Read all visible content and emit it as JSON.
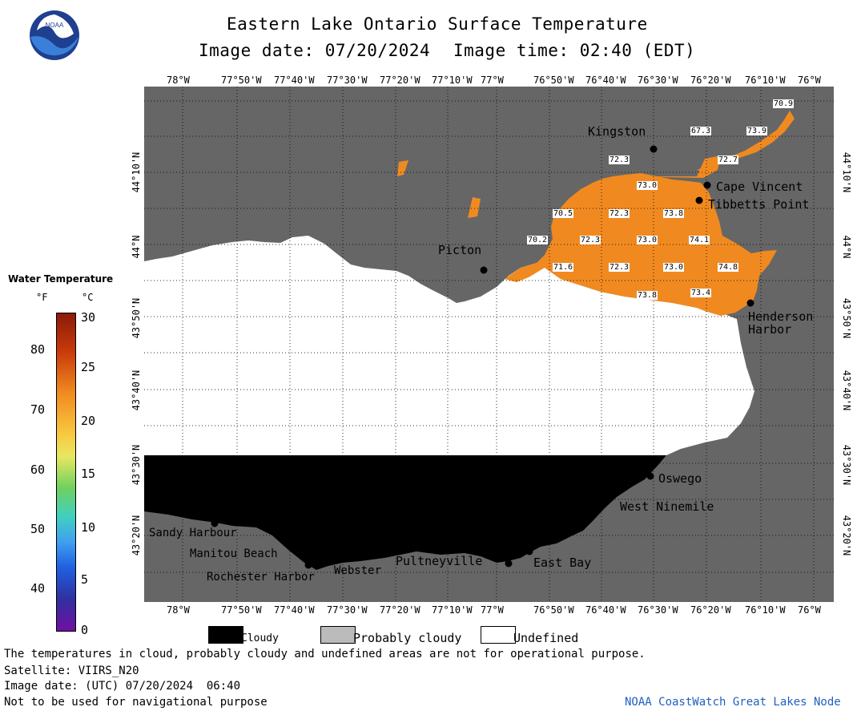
{
  "header": {
    "title": "Eastern Lake Ontario Surface Temperature",
    "date_label": "Image date: 07/20/2024",
    "time_label": "Image time: 02:40 (EDT)"
  },
  "axes": {
    "lon_labels": [
      "78°W",
      "77°50'W",
      "77°40'W",
      "77°30'W",
      "77°20'W",
      "77°10'W",
      "77°W",
      "76°50'W",
      "76°40'W",
      "76°30'W",
      "76°20'W",
      "76°10'W",
      "76°W"
    ],
    "lat_labels": [
      "44°10'N",
      "44°N",
      "43°50'N",
      "43°40'N",
      "43°30'N",
      "43°20'N"
    ]
  },
  "colorbar": {
    "title": "Water Temperature",
    "unit_f": "°F",
    "unit_c": "°C",
    "f_ticks": [
      "80",
      "70",
      "60",
      "50",
      "40"
    ],
    "c_ticks": [
      "30",
      "25",
      "20",
      "15",
      "10",
      "5",
      "0"
    ]
  },
  "places": {
    "kingston": "Kingston",
    "cape_vincent": "Cape Vincent",
    "tibbetts": "Tibbetts Point",
    "picton": "Picton",
    "henderson": "Henderson\nHarbor",
    "oswego": "Oswego",
    "west_ninemile": "West Ninemile",
    "sandy_harbour": "Sandy Harbour",
    "manitou": "Manitou Beach",
    "rochester": "Rochester Harbor",
    "webster": "Webster",
    "pultneyville": "Pultneyville",
    "east_bay": "East Bay"
  },
  "temp_labels": [
    "70.9",
    "67.3",
    "73.9",
    "72.3",
    "72.7",
    "73.0",
    "70.5",
    "72.3",
    "73.8",
    "70.2",
    "72.3",
    "73.0",
    "74.1",
    "71.6",
    "72.3",
    "73.0",
    "74.8",
    "73.8",
    "73.4"
  ],
  "legend": {
    "cloudy": "Cloudy",
    "probably_cloudy": "Probably cloudy",
    "undefined": "Undefined"
  },
  "footer": {
    "disclaimer": "The temperatures in cloud, probably cloudy and undefined areas are not for operational purpose.",
    "satellite": "Satellite: VIIRS_N20",
    "utc_date": "Image date: (UTC) 07/20/2024  06:40",
    "nav_note": "Not to be used for navigational purpose",
    "credit": "NOAA CoastWatch Great Lakes Node"
  },
  "colors": {
    "land": "#666666",
    "cloudy": "#000000",
    "undefined": "#ffffff",
    "probably_cloudy": "#bbbbbb",
    "water_warm": "#f08a20",
    "credit_text": "#2060c0"
  },
  "icons": [
    "noaa-logo"
  ]
}
